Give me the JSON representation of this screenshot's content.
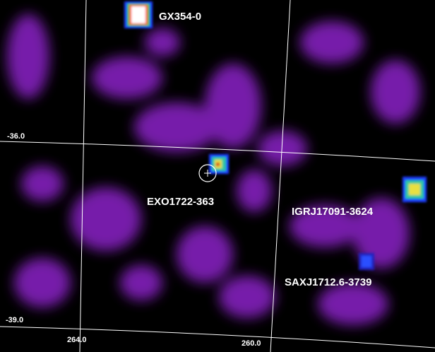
{
  "sources": [
    {
      "label": "GX354-0"
    },
    {
      "label": "EXO1722-363"
    },
    {
      "label": "IGRJ17091-3624"
    },
    {
      "label": "SAXJ1712.6-3739"
    }
  ],
  "grid_labels": {
    "dec": [
      "-36.0",
      "-39.0"
    ],
    "ra": [
      "264.0",
      "260.0"
    ]
  }
}
